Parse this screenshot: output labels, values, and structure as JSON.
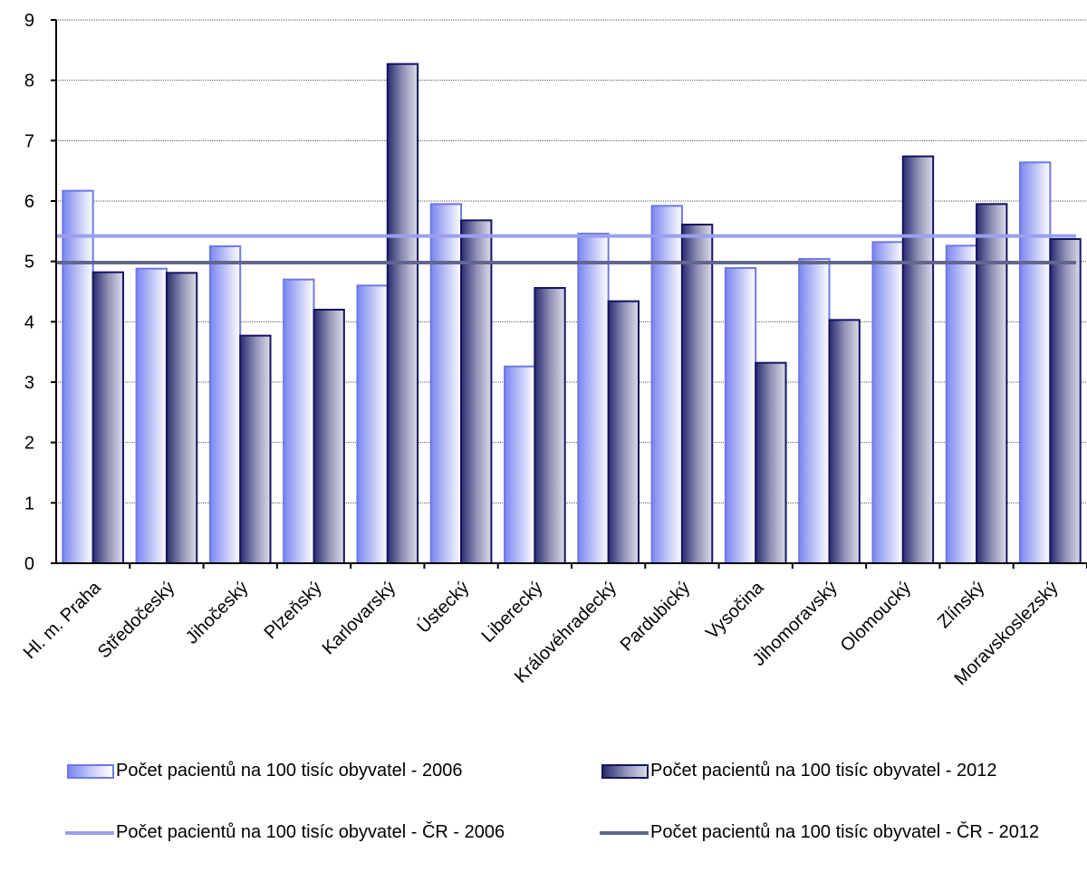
{
  "chart_data": {
    "type": "bar",
    "categories": [
      "Hl. m. Praha",
      "Středočeský",
      "Jihočeský",
      "Plzeňský",
      "Karlovarský",
      "Ústecký",
      "Liberecký",
      "Královéhradecký",
      "Pardubický",
      "Vysočina",
      "Jihomoravský",
      "Olomoucký",
      "Zlínský",
      "Moravskoslezský"
    ],
    "series": [
      {
        "name": "Počet pacientů na 100 tisíc obyvatel - 2006",
        "type": "bar",
        "color": "#6e78e6",
        "values": [
          6.17,
          4.88,
          5.25,
          4.7,
          4.6,
          5.95,
          3.26,
          5.46,
          5.92,
          4.89,
          5.04,
          5.32,
          5.26,
          6.64
        ]
      },
      {
        "name": "Počet pacientů na 100 tisíc obyvatel - 2012",
        "type": "bar",
        "color": "#141464",
        "values": [
          4.82,
          4.81,
          3.77,
          4.2,
          8.27,
          5.68,
          4.56,
          4.34,
          5.61,
          3.32,
          4.03,
          6.74,
          5.95,
          5.37
        ]
      },
      {
        "name": "Počet pacientů na 100 tisíc obyvatel - ČR - 2006",
        "type": "line",
        "color": "#9aa0ee",
        "value": 5.42
      },
      {
        "name": "Počet pacientů na 100 tisíc obyvatel - ČR - 2012",
        "type": "line",
        "color": "#62668e",
        "value": 4.98
      }
    ],
    "yticks": [
      "0",
      "1",
      "2",
      "3",
      "4",
      "5",
      "6",
      "7",
      "8",
      "9"
    ],
    "ylim": [
      0,
      9
    ],
    "grid": true,
    "legend_position": "bottom",
    "title": "",
    "xlabel": "",
    "ylabel": ""
  }
}
